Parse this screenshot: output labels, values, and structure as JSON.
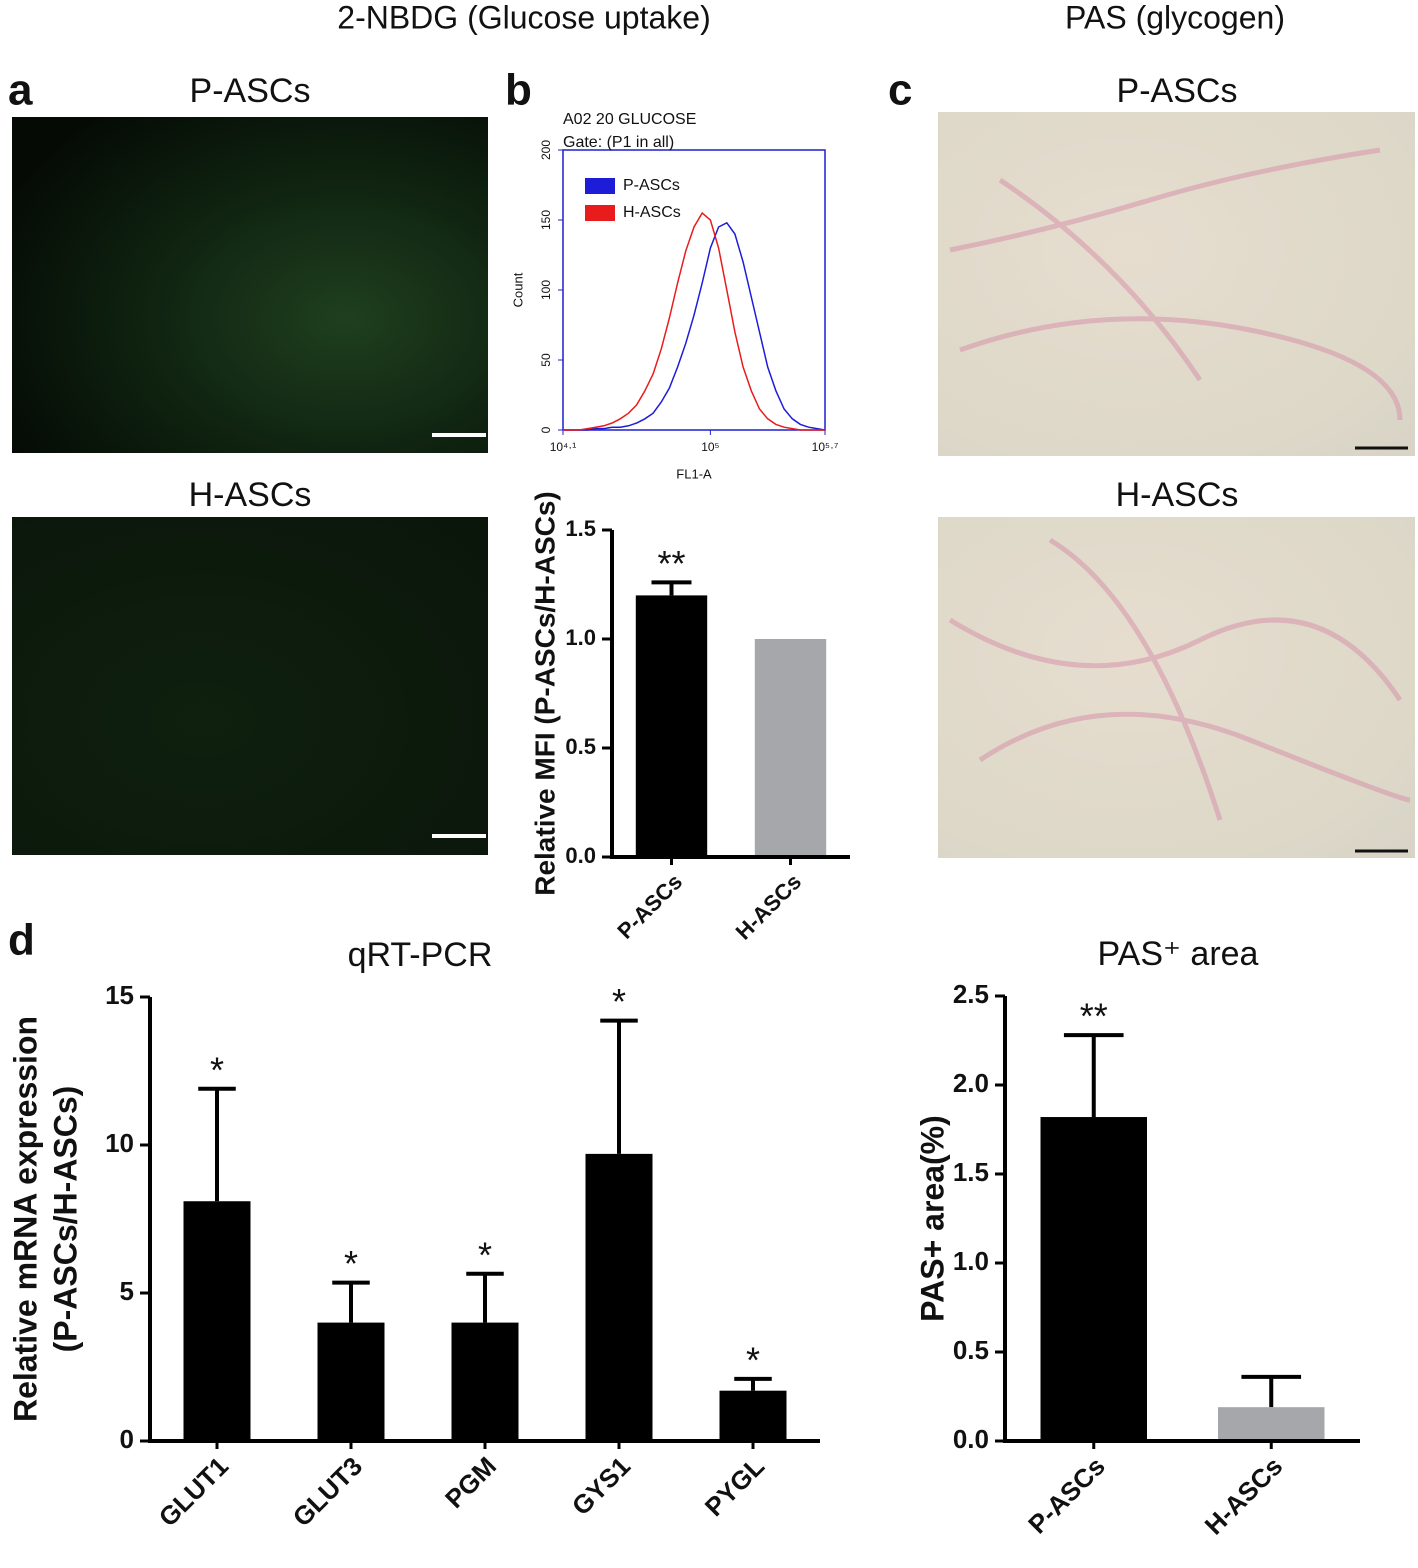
{
  "figure": {
    "headers": [
      "2-NBDG (Glucose uptake)",
      "PAS (glycogen)"
    ],
    "panel_letters": [
      "a",
      "b",
      "c",
      "d"
    ],
    "image_labels": [
      "P-ASCs",
      "H-ASCs",
      "P-ASCs",
      "H-ASCs"
    ]
  },
  "chart_data": [
    {
      "type": "line",
      "title": [
        "A02 20 GLUCOSE",
        "Gate: (P1 in all)"
      ],
      "xlabel": "FL1-A",
      "ylabel": "Count",
      "xscale": "log",
      "xlim": [
        12589,
        501187
      ],
      "xticks": [
        {
          "value": 12589,
          "label": "10⁴·¹"
        },
        {
          "value": 100000,
          "label": "10⁵"
        },
        {
          "value": 501187,
          "label": "10⁵·⁷"
        }
      ],
      "ylim": [
        0,
        200
      ],
      "yticks": [
        0,
        50,
        100,
        150,
        200
      ],
      "legend": "upper left",
      "frame_color": "#1f1fd0",
      "x": [
        12589,
        14125,
        15849,
        17783,
        19953,
        22387,
        25119,
        28184,
        31623,
        35481,
        39811,
        44668,
        50119,
        56234,
        63096,
        70795,
        79433,
        89125,
        100000,
        112202,
        125893,
        141254,
        158489,
        177828,
        199526,
        223872,
        251189,
        281838,
        316228,
        354813,
        398107,
        446684,
        501187
      ],
      "series": [
        {
          "name": "P-ASCs",
          "color": "#1d1dd8",
          "values": [
            0,
            0,
            0,
            0,
            1,
            1,
            2,
            2,
            3,
            5,
            8,
            12,
            20,
            30,
            45,
            62,
            82,
            105,
            130,
            145,
            148,
            140,
            120,
            95,
            70,
            45,
            28,
            15,
            8,
            4,
            2,
            1,
            0
          ]
        },
        {
          "name": "H-ASCs",
          "color": "#e81c1c",
          "values": [
            0,
            0,
            0,
            1,
            2,
            3,
            5,
            8,
            12,
            18,
            28,
            40,
            58,
            80,
            105,
            128,
            145,
            155,
            150,
            130,
            100,
            70,
            45,
            28,
            15,
            8,
            4,
            2,
            1,
            0,
            0,
            0,
            0
          ]
        }
      ]
    },
    {
      "type": "bar",
      "ylabel": "Relative MFI (P-ASCs/H-ASCs)",
      "categories": [
        "P-ASCs",
        "H-ASCs"
      ],
      "values": [
        1.2,
        1.0
      ],
      "errors": [
        0.06,
        0
      ],
      "colors": [
        "#000000",
        "#a6a7ab"
      ],
      "significance": [
        "**",
        null
      ],
      "ylim": [
        0,
        1.5
      ],
      "yticks": [
        {
          "value": 0,
          "label": "0.0"
        },
        {
          "value": 0.5,
          "label": "0.5"
        },
        {
          "value": 1,
          "label": "1.0"
        },
        {
          "value": 1.5,
          "label": "1.5"
        }
      ]
    },
    {
      "type": "bar",
      "title": "qRT-PCR",
      "ylabel": [
        "Relative mRNA expression",
        "(P-ASCs/H-ASCs)"
      ],
      "categories": [
        "GLUT1",
        "GLUT3",
        "PGM",
        "GYS1",
        "PYGL"
      ],
      "values": [
        8.1,
        4.0,
        4.0,
        9.7,
        1.7
      ],
      "errors": [
        3.8,
        1.35,
        1.65,
        4.5,
        0.4
      ],
      "colors": [
        "#000000",
        "#000000",
        "#000000",
        "#000000",
        "#000000"
      ],
      "significance": [
        "*",
        "*",
        "*",
        "*",
        "*"
      ],
      "ylim": [
        0,
        15
      ],
      "yticks": [
        0,
        5,
        10,
        15
      ]
    },
    {
      "type": "bar",
      "title": "PAS⁺ area",
      "ylabel": "PAS+ area(%)",
      "categories": [
        "P-ASCs",
        "H-ASCs"
      ],
      "values": [
        1.82,
        0.19
      ],
      "errors": [
        0.46,
        0.17
      ],
      "colors": [
        "#000000",
        "#a6a7ab"
      ],
      "significance": [
        "**",
        null
      ],
      "ylim": [
        0,
        2.5
      ],
      "yticks": [
        {
          "value": 0,
          "label": "0.0"
        },
        {
          "value": 0.5,
          "label": "0.5"
        },
        {
          "value": 1,
          "label": "1.0"
        },
        {
          "value": 1.5,
          "label": "1.5"
        },
        {
          "value": 2,
          "label": "2.0"
        },
        {
          "value": 2.5,
          "label": "2.5"
        }
      ]
    }
  ]
}
